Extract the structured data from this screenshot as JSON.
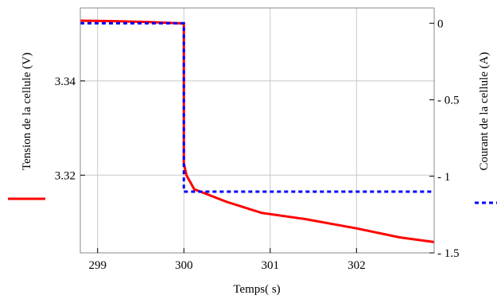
{
  "chart_data": {
    "type": "line",
    "xlabel": "Temps( s)",
    "ylabel_left": "Tension de la cellule (V)",
    "ylabel_right": "Courant de la cellule (A)",
    "xlim": [
      298.8,
      302.9
    ],
    "ylim_left": [
      3.3035,
      3.3555
    ],
    "ylim_right": [
      -1.5,
      0.1
    ],
    "x_ticks": [
      299,
      300,
      301,
      302
    ],
    "y_left_ticks": [
      3.32,
      3.34
    ],
    "y_right_ticks": [
      0,
      -0.5,
      -1,
      -1.5
    ],
    "x_tick_labels": [
      "299",
      "300",
      "301",
      "302"
    ],
    "y_left_tick_labels": [
      "3.32",
      "3.34"
    ],
    "y_right_tick_labels": [
      "0",
      "- 0.5",
      "- 1",
      "- 1.5"
    ],
    "grid": true,
    "series": [
      {
        "axis": "left",
        "color": "#ff0000",
        "style": "solid",
        "x": [
          298.8,
          299.2,
          299.6,
          300.0,
          300.0,
          300.03,
          300.12,
          300.5,
          300.9,
          301.4,
          302.0,
          302.5,
          302.9
        ],
        "y": [
          3.3528,
          3.3527,
          3.3525,
          3.3522,
          3.3225,
          3.32,
          3.317,
          3.3143,
          3.312,
          3.3107,
          3.3087,
          3.3068,
          3.3058
        ]
      },
      {
        "axis": "right",
        "color": "#0000ff",
        "style": "dashed",
        "x": [
          298.8,
          300.0,
          300.0,
          302.9
        ],
        "y": [
          0.0,
          0.0,
          -1.1,
          -1.1
        ]
      }
    ]
  }
}
